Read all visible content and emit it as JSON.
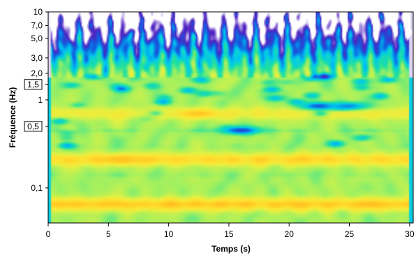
{
  "chart_data": {
    "type": "heatmap",
    "title": "",
    "xlabel": "Temps (s)",
    "ylabel": "Fréquence (Hz)",
    "xlim": [
      0,
      30.3
    ],
    "ylim": [
      0.04,
      10
    ],
    "y_scale": "log",
    "x_ticks": [
      {
        "value": 0,
        "label": "0"
      },
      {
        "value": 5,
        "label": "5"
      },
      {
        "value": 10,
        "label": "10"
      },
      {
        "value": 15,
        "label": "15"
      },
      {
        "value": 20,
        "label": "20"
      },
      {
        "value": 25,
        "label": "25"
      },
      {
        "value": 30,
        "label": "30"
      }
    ],
    "y_ticks": [
      {
        "value": 10,
        "label": "10",
        "boxed": false
      },
      {
        "value": 7,
        "label": "7,0",
        "boxed": false
      },
      {
        "value": 5,
        "label": "5,0",
        "boxed": false
      },
      {
        "value": 3,
        "label": "3,0",
        "boxed": false
      },
      {
        "value": 2,
        "label": "2,0",
        "boxed": false
      },
      {
        "value": 1.5,
        "label": "1,5",
        "boxed": true
      },
      {
        "value": 1,
        "label": "1",
        "boxed": false
      },
      {
        "value": 0.5,
        "label": "0,5",
        "boxed": true
      },
      {
        "value": 0.1,
        "label": "0,1",
        "boxed": false
      }
    ],
    "colormap": [
      "#ffffff",
      "#5020c0",
      "#1060e0",
      "#00c8f0",
      "#20e0a0",
      "#a0f060",
      "#e8f040",
      "#ffe030",
      "#ffc020"
    ],
    "bands": [
      {
        "freq": 0.065,
        "level": 7.6
      },
      {
        "freq": 0.21,
        "level": 7.2
      },
      {
        "freq": 0.7,
        "level": 6.3
      }
    ],
    "troughs": [
      {
        "freq": 0.14,
        "level": 4.6
      },
      {
        "freq": 0.3,
        "level": 4.8
      },
      {
        "freq": 0.45,
        "level": 4.3
      }
    ],
    "blobs": [
      {
        "t": 16,
        "f": 0.45,
        "level": 1.6
      },
      {
        "t": 22.5,
        "f": 0.85,
        "level": 1.8
      },
      {
        "t": 25,
        "f": 0.85,
        "level": 2.4
      },
      {
        "t": 12.5,
        "f": 0.7,
        "level": 7.8
      },
      {
        "t": 6,
        "f": 0.21,
        "level": 7.9
      }
    ],
    "noise_boundary_hz": 1.8
  }
}
